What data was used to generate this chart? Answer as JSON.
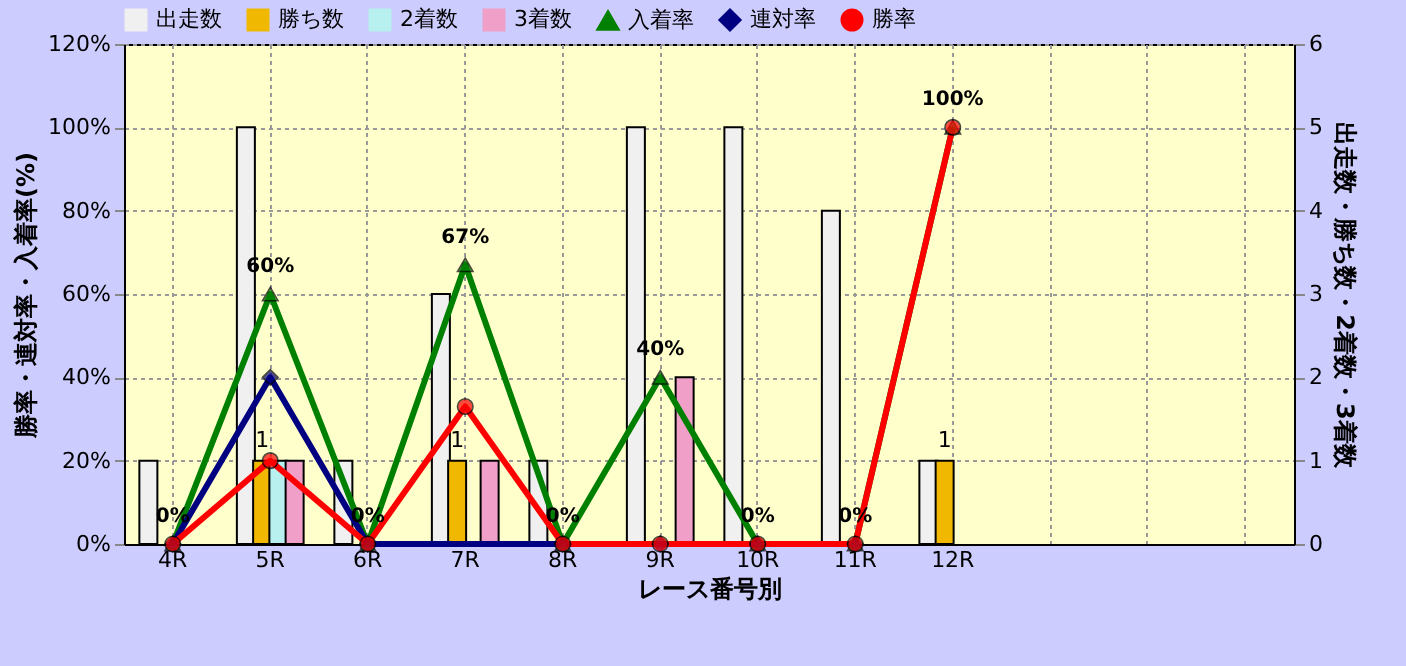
{
  "chart_data": {
    "type": "bar",
    "xlabel": "レース番号別",
    "ylabel": "勝率・連対率・入着率(%)",
    "y2label": "出走数・勝ち数・2着数・3着数",
    "categories": [
      "4R",
      "5R",
      "6R",
      "7R",
      "8R",
      "9R",
      "10R",
      "11R",
      "12R",
      null,
      null,
      null
    ],
    "series": [
      {
        "name": "出走数",
        "color": "#f0f0f0",
        "axis": "y2",
        "values": [
          1,
          5,
          1,
          3,
          1,
          5,
          5,
          4,
          1,
          null,
          null,
          null
        ]
      },
      {
        "name": "勝ち数",
        "color": "#f0b800",
        "axis": "y2",
        "values": [
          0,
          1,
          0,
          1,
          0,
          0,
          0,
          0,
          1,
          null,
          null,
          null
        ],
        "value_labels": [
          null,
          "1",
          null,
          "1",
          null,
          null,
          null,
          null,
          "1",
          null,
          null,
          null
        ]
      },
      {
        "name": "2着数",
        "color": "#b8f0f0",
        "axis": "y2",
        "values": [
          0,
          1,
          0,
          0,
          0,
          0,
          0,
          0,
          0,
          null,
          null,
          null
        ]
      },
      {
        "name": "3着数",
        "color": "#f0a0c8",
        "axis": "y2",
        "values": [
          0,
          1,
          0,
          1,
          0,
          2,
          0,
          0,
          0,
          null,
          null,
          null
        ]
      },
      {
        "name": "入着率",
        "type": "line",
        "color": "#008000",
        "marker": "triangle",
        "values": [
          0,
          60,
          0,
          67,
          0,
          40,
          0,
          0,
          100,
          null,
          null,
          null
        ],
        "value_labels": [
          "0%",
          "60%",
          "0%",
          "67%",
          "0%",
          "40%",
          "0%",
          "0%",
          "100%",
          null,
          null,
          null
        ]
      },
      {
        "name": "連対率",
        "type": "line",
        "color": "#000080",
        "marker": "diamond",
        "values": [
          0,
          40,
          0,
          null,
          0,
          0,
          0,
          0,
          null,
          null,
          null,
          null
        ]
      },
      {
        "name": "勝率",
        "type": "line",
        "color": "#ff0000",
        "marker": "circle",
        "values": [
          0,
          20,
          0,
          33,
          0,
          0,
          0,
          0,
          100,
          null,
          null,
          null
        ]
      }
    ],
    "ylim": [
      0,
      120
    ],
    "yticks": [
      {
        "value": 0,
        "label": "0%"
      },
      {
        "value": 20,
        "label": "20%"
      },
      {
        "value": 40,
        "label": "40%"
      },
      {
        "value": 60,
        "label": "60%"
      },
      {
        "value": 80,
        "label": "80%"
      },
      {
        "value": 100,
        "label": "100%"
      },
      {
        "value": 120,
        "label": "120%"
      }
    ],
    "y2lim": [
      0,
      6
    ],
    "y2ticks": [
      0,
      1,
      2,
      3,
      4,
      5,
      6
    ],
    "grid": true,
    "legend": "top"
  }
}
